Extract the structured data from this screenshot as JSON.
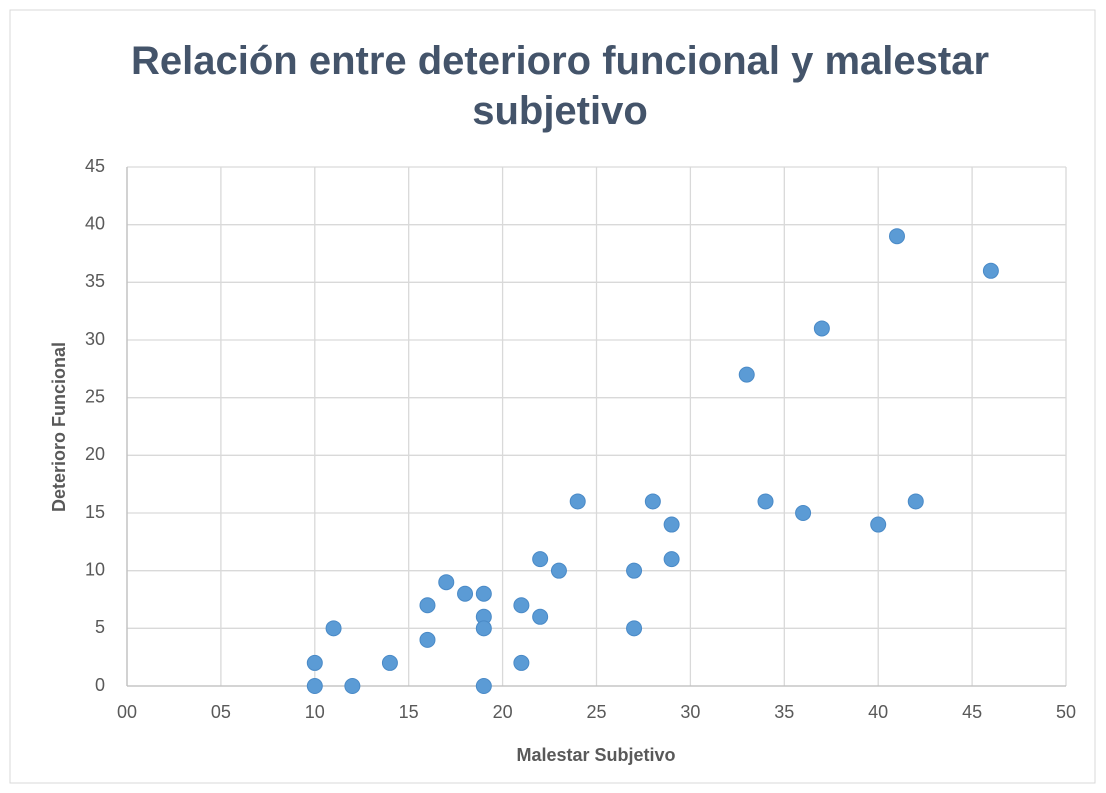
{
  "chart_data": {
    "type": "scatter",
    "title": "Relación entre deterioro funcional y malestar subjetivo",
    "xlabel": "Malestar Subjetivo",
    "ylabel": "Deterioro Funcional",
    "color": "#5b9bd5",
    "grid": true,
    "x": [
      10,
      10,
      11,
      12,
      14,
      16,
      16,
      17,
      18,
      19,
      19,
      19,
      19,
      21,
      21,
      22,
      22,
      23,
      24,
      27,
      27,
      28,
      29,
      29,
      33,
      34,
      36,
      37,
      40,
      41,
      42,
      46
    ],
    "values": [
      2,
      0,
      5,
      0,
      2,
      7,
      4,
      9,
      8,
      8,
      6,
      5,
      0,
      7,
      2,
      11,
      6,
      10,
      16,
      10,
      5,
      16,
      14,
      11,
      27,
      16,
      15,
      31,
      14,
      39,
      16,
      36
    ],
    "xlim": [
      0,
      50
    ],
    "xticks": [
      {
        "value": 0,
        "label": "00"
      },
      {
        "value": 5,
        "label": "05"
      },
      10,
      15,
      20,
      25,
      30,
      35,
      40,
      45,
      50
    ],
    "ylim": [
      0,
      45
    ],
    "yticks": [
      0,
      5,
      10,
      15,
      20,
      25,
      30,
      35,
      40,
      45
    ]
  }
}
